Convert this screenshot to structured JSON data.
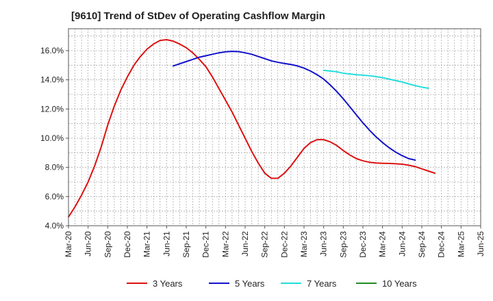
{
  "chart_data": {
    "type": "line",
    "title": "[9610]  Trend of StDev of Operating Cashflow Margin",
    "xlabel": "",
    "ylabel": "",
    "ylim": [
      4.0,
      17.5
    ],
    "yticks": [
      4.0,
      6.0,
      8.0,
      10.0,
      12.0,
      14.0,
      16.0
    ],
    "ytick_labels": [
      "4.0%",
      "6.0%",
      "8.0%",
      "10.0%",
      "12.0%",
      "14.0%",
      "16.0%"
    ],
    "xticks": [
      "Mar-20",
      "Jun-20",
      "Sep-20",
      "Dec-20",
      "Mar-21",
      "Jun-21",
      "Sep-21",
      "Dec-21",
      "Mar-22",
      "Jun-22",
      "Sep-22",
      "Dec-22",
      "Mar-23",
      "Jun-23",
      "Sep-23",
      "Dec-23",
      "Mar-24",
      "Jun-24",
      "Sep-24",
      "Dec-24",
      "Mar-25",
      "Jun-25"
    ],
    "grid": true,
    "legend_position": "bottom",
    "series": [
      {
        "name": "3 Years",
        "color": "#dd1111",
        "values": [
          [
            "Mar-20",
            4.6
          ],
          [
            "Apr-20",
            5.3
          ],
          [
            "May-20",
            6.1
          ],
          [
            "Jun-20",
            7.0
          ],
          [
            "Jul-20",
            8.1
          ],
          [
            "Aug-20",
            9.4
          ],
          [
            "Sep-20",
            10.9
          ],
          [
            "Oct-20",
            12.2
          ],
          [
            "Nov-20",
            13.3
          ],
          [
            "Dec-20",
            14.2
          ],
          [
            "Jan-21",
            15.0
          ],
          [
            "Feb-21",
            15.6
          ],
          [
            "Mar-21",
            16.1
          ],
          [
            "Apr-21",
            16.45
          ],
          [
            "May-21",
            16.7
          ],
          [
            "Jun-21",
            16.75
          ],
          [
            "Jul-21",
            16.65
          ],
          [
            "Aug-21",
            16.45
          ],
          [
            "Sep-21",
            16.2
          ],
          [
            "Oct-21",
            15.85
          ],
          [
            "Nov-21",
            15.4
          ],
          [
            "Dec-21",
            14.9
          ],
          [
            "Jan-22",
            14.2
          ],
          [
            "Feb-22",
            13.4
          ],
          [
            "Mar-22",
            12.6
          ],
          [
            "Apr-22",
            11.8
          ],
          [
            "May-22",
            10.9
          ],
          [
            "Jun-22",
            10.0
          ],
          [
            "Jul-22",
            9.1
          ],
          [
            "Aug-22",
            8.3
          ],
          [
            "Sep-22",
            7.6
          ],
          [
            "Oct-22",
            7.25
          ],
          [
            "Nov-22",
            7.25
          ],
          [
            "Dec-22",
            7.6
          ],
          [
            "Jan-23",
            8.1
          ],
          [
            "Feb-23",
            8.7
          ],
          [
            "Mar-23",
            9.3
          ],
          [
            "Apr-23",
            9.7
          ],
          [
            "May-23",
            9.9
          ],
          [
            "Jun-23",
            9.9
          ],
          [
            "Jul-23",
            9.75
          ],
          [
            "Aug-23",
            9.5
          ],
          [
            "Sep-23",
            9.15
          ],
          [
            "Oct-23",
            8.85
          ],
          [
            "Nov-23",
            8.6
          ],
          [
            "Dec-23",
            8.45
          ],
          [
            "Jan-24",
            8.35
          ],
          [
            "Feb-24",
            8.3
          ],
          [
            "Mar-24",
            8.28
          ],
          [
            "Apr-24",
            8.27
          ],
          [
            "May-24",
            8.25
          ],
          [
            "Jun-24",
            8.22
          ],
          [
            "Jul-24",
            8.15
          ],
          [
            "Aug-24",
            8.05
          ],
          [
            "Sep-24",
            7.9
          ],
          [
            "Oct-24",
            7.75
          ],
          [
            "Nov-24",
            7.6
          ]
        ]
      },
      {
        "name": "5 Years",
        "color": "#1111cc",
        "values": [
          [
            "Jul-21",
            14.95
          ],
          [
            "Aug-21",
            15.1
          ],
          [
            "Sep-21",
            15.25
          ],
          [
            "Oct-21",
            15.4
          ],
          [
            "Nov-21",
            15.55
          ],
          [
            "Dec-21",
            15.65
          ],
          [
            "Jan-22",
            15.75
          ],
          [
            "Feb-22",
            15.85
          ],
          [
            "Mar-22",
            15.92
          ],
          [
            "Apr-22",
            15.95
          ],
          [
            "May-22",
            15.93
          ],
          [
            "Jun-22",
            15.85
          ],
          [
            "Jul-22",
            15.75
          ],
          [
            "Aug-22",
            15.6
          ],
          [
            "Sep-22",
            15.45
          ],
          [
            "Oct-22",
            15.3
          ],
          [
            "Nov-22",
            15.2
          ],
          [
            "Dec-22",
            15.12
          ],
          [
            "Jan-23",
            15.05
          ],
          [
            "Feb-23",
            14.95
          ],
          [
            "Mar-23",
            14.8
          ],
          [
            "Apr-23",
            14.6
          ],
          [
            "May-23",
            14.35
          ],
          [
            "Jun-23",
            14.05
          ],
          [
            "Jul-23",
            13.65
          ],
          [
            "Aug-23",
            13.2
          ],
          [
            "Sep-23",
            12.7
          ],
          [
            "Oct-23",
            12.15
          ],
          [
            "Nov-23",
            11.6
          ],
          [
            "Dec-23",
            11.05
          ],
          [
            "Jan-24",
            10.55
          ],
          [
            "Feb-24",
            10.1
          ],
          [
            "Mar-24",
            9.7
          ],
          [
            "Apr-24",
            9.35
          ],
          [
            "May-24",
            9.05
          ],
          [
            "Jun-24",
            8.8
          ],
          [
            "Jul-24",
            8.6
          ],
          [
            "Aug-24",
            8.5
          ]
        ]
      },
      {
        "name": "7 Years",
        "color": "#22dddd",
        "values": [
          [
            "Jun-23",
            14.65
          ],
          [
            "Jul-23",
            14.6
          ],
          [
            "Aug-23",
            14.55
          ],
          [
            "Sep-23",
            14.45
          ],
          [
            "Oct-23",
            14.4
          ],
          [
            "Nov-23",
            14.35
          ],
          [
            "Dec-23",
            14.32
          ],
          [
            "Jan-24",
            14.28
          ],
          [
            "Feb-24",
            14.22
          ],
          [
            "Mar-24",
            14.15
          ],
          [
            "Apr-24",
            14.05
          ],
          [
            "May-24",
            13.95
          ],
          [
            "Jun-24",
            13.85
          ],
          [
            "Jul-24",
            13.72
          ],
          [
            "Aug-24",
            13.6
          ],
          [
            "Sep-24",
            13.5
          ],
          [
            "Oct-24",
            13.42
          ]
        ]
      },
      {
        "name": "10 Years",
        "color": "#228b22",
        "values": []
      }
    ]
  }
}
